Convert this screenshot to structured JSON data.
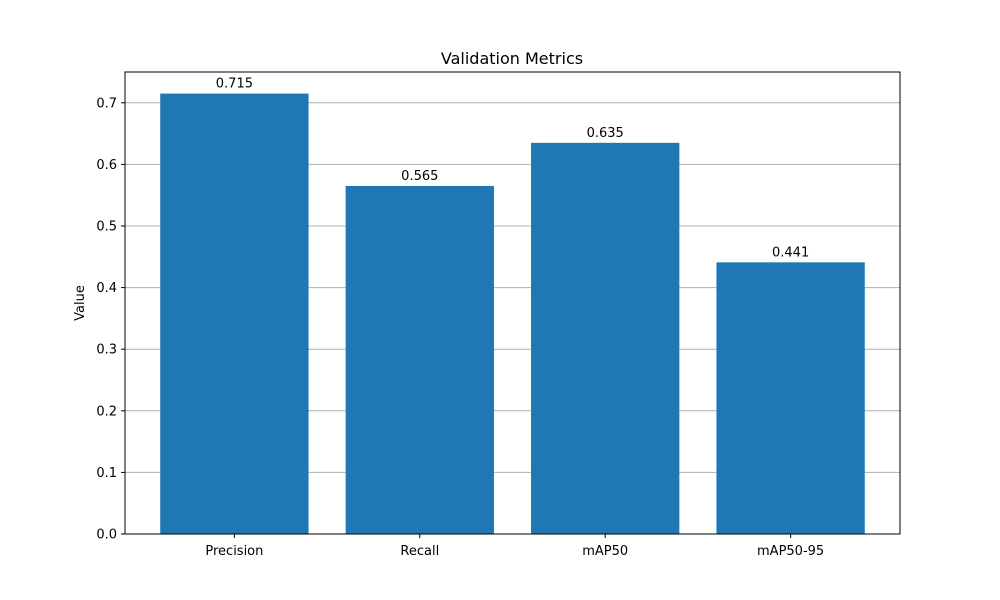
{
  "chart_data": {
    "type": "bar",
    "title": "Validation Metrics",
    "xlabel": "",
    "ylabel": "Value",
    "categories": [
      "Precision",
      "Recall",
      "mAP50",
      "mAP50-95"
    ],
    "values": [
      0.715,
      0.565,
      0.635,
      0.441
    ],
    "value_labels": [
      "0.715",
      "0.565",
      "0.635",
      "0.441"
    ],
    "ylim": [
      0,
      0.75
    ],
    "yticks": [
      0.0,
      0.1,
      0.2,
      0.3,
      0.4,
      0.5,
      0.6,
      0.7
    ],
    "ytick_labels": [
      "0.0",
      "0.1",
      "0.2",
      "0.3",
      "0.4",
      "0.5",
      "0.6",
      "0.7"
    ],
    "grid": "y",
    "bar_color": "#1f77b4",
    "grid_color": "#b0b0b0"
  }
}
